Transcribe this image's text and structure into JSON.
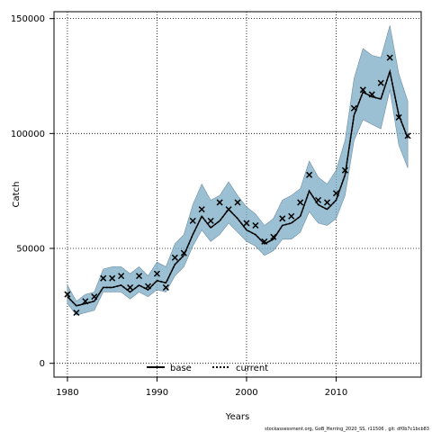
{
  "chart_data": {
    "type": "line",
    "xlabel": "Years",
    "ylabel": "Catch",
    "xlim": [
      1978.5,
      2019.5
    ],
    "ylim": [
      -6000,
      153000
    ],
    "x_ticks": [
      1980,
      1990,
      2000,
      2010
    ],
    "x_tick_labels": [
      "1980",
      "1990",
      "2000",
      "2010"
    ],
    "y_ticks": [
      0,
      50000,
      100000,
      150000
    ],
    "y_tick_labels": [
      "0",
      "50000",
      "100000",
      "150000"
    ],
    "grid": true,
    "legend_placement": "bottom-center",
    "colors": {
      "band": "#7aa9c4",
      "band_edge": "#6f8fa3",
      "line": "#000000"
    },
    "x": [
      1980,
      1981,
      1982,
      1983,
      1984,
      1985,
      1986,
      1987,
      1988,
      1989,
      1990,
      1991,
      1992,
      1993,
      1994,
      1995,
      1996,
      1997,
      1998,
      1999,
      2000,
      2001,
      2002,
      2003,
      2004,
      2005,
      2006,
      2007,
      2008,
      2009,
      2010,
      2011,
      2012,
      2013,
      2014,
      2015,
      2016,
      2017,
      2018
    ],
    "observed": [
      30000,
      22000,
      27000,
      29000,
      37000,
      37000,
      38000,
      33000,
      38000,
      33500,
      39000,
      33000,
      46000,
      48000,
      62000,
      67000,
      62000,
      70000,
      67000,
      70000,
      61000,
      60000,
      53000,
      55000,
      63000,
      64000,
      70000,
      82000,
      71000,
      70000,
      74000,
      84000,
      111000,
      119000,
      117000,
      122000,
      133000,
      107000,
      99000
    ],
    "band_upper": [
      34000,
      27000,
      30000,
      31000,
      41000,
      42000,
      42000,
      39000,
      42000,
      38000,
      44000,
      42000,
      52000,
      56000,
      69000,
      78000,
      71000,
      73000,
      79000,
      73000,
      68000,
      65000,
      60000,
      63000,
      71000,
      73000,
      76000,
      88000,
      81000,
      78000,
      84000,
      97000,
      124000,
      137000,
      134000,
      133000,
      147000,
      126000,
      114000
    ],
    "band_lower": [
      26000,
      21000,
      22000,
      23000,
      31000,
      31000,
      31000,
      28000,
      31000,
      29000,
      32000,
      31000,
      38000,
      42000,
      51000,
      58000,
      53000,
      56000,
      61000,
      57000,
      53000,
      51000,
      47000,
      49000,
      54000,
      54000,
      57000,
      66000,
      61000,
      60000,
      63000,
      73000,
      97000,
      106000,
      104000,
      102000,
      119000,
      95000,
      85000
    ],
    "series": [
      {
        "name": "base",
        "style": "solid",
        "values": [
          29000,
          25000,
          26000,
          27000,
          33000,
          33000,
          34000,
          31000,
          34000,
          32000,
          36000,
          35000,
          43000,
          47000,
          56000,
          64000,
          59000,
          62000,
          67000,
          63000,
          58000,
          56000,
          52000,
          54000,
          60000,
          61000,
          64000,
          75000,
          69000,
          67000,
          71000,
          82000,
          108000,
          118000,
          116000,
          115000,
          127000,
          108000,
          98000
        ]
      },
      {
        "name": "current",
        "style": "dotted",
        "values": [
          29000,
          25000,
          26000,
          27000,
          33000,
          33000,
          34000,
          31000,
          34000,
          32000,
          36000,
          35000,
          43000,
          47000,
          56000,
          64000,
          59000,
          62000,
          67000,
          63000,
          58000,
          56000,
          52000,
          54000,
          60000,
          61000,
          64000,
          75000,
          69000,
          67000,
          71000,
          82000,
          108000,
          118000,
          116000,
          115000,
          127000,
          108000,
          98000
        ]
      }
    ]
  },
  "footer": "stockassessment.org, GoB_Herring_2020_SS, r11506 , git: df0b7c1bcb83"
}
